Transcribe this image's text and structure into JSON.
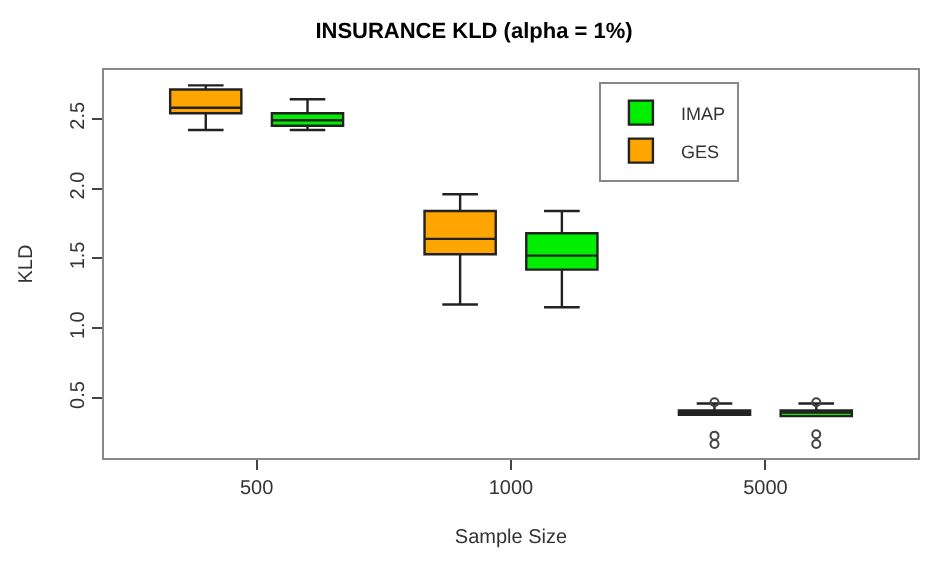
{
  "chart_data": {
    "type": "box",
    "title": "INSURANCE KLD (alpha = 1%)",
    "xlabel": "Sample Size",
    "ylabel": "KLD",
    "categories": [
      "500",
      "1000",
      "5000"
    ],
    "series": [
      {
        "name": "GES",
        "color": "#ffa500",
        "boxes": [
          {
            "low": 2.42,
            "q1": 2.54,
            "median": 2.58,
            "q3": 2.71,
            "high": 2.74
          },
          {
            "low": 1.17,
            "q1": 1.53,
            "median": 1.64,
            "q3": 1.84,
            "high": 1.96
          },
          {
            "low": 0.38,
            "q1": 0.38,
            "median": 0.395,
            "q3": 0.41,
            "high": 0.46,
            "outliers": [
              0.47,
              0.23,
              0.17
            ]
          }
        ]
      },
      {
        "name": "IMAP",
        "color": "#00ee00",
        "boxes": [
          {
            "low": 2.42,
            "q1": 2.45,
            "median": 2.49,
            "q3": 2.54,
            "high": 2.64
          },
          {
            "low": 1.15,
            "q1": 1.42,
            "median": 1.52,
            "q3": 1.68,
            "high": 1.84
          },
          {
            "low": 0.37,
            "q1": 0.37,
            "median": 0.4,
            "q3": 0.41,
            "high": 0.46,
            "outliers": [
              0.47,
              0.24,
              0.17
            ]
          }
        ]
      }
    ],
    "ylim": [
      0.07,
      2.85
    ],
    "yticks": [
      0.5,
      {
        "value": 1,
        "label": "1.0"
      },
      1.5,
      {
        "value": 2,
        "label": "2.0"
      },
      2.5
    ],
    "legend": "top right"
  }
}
